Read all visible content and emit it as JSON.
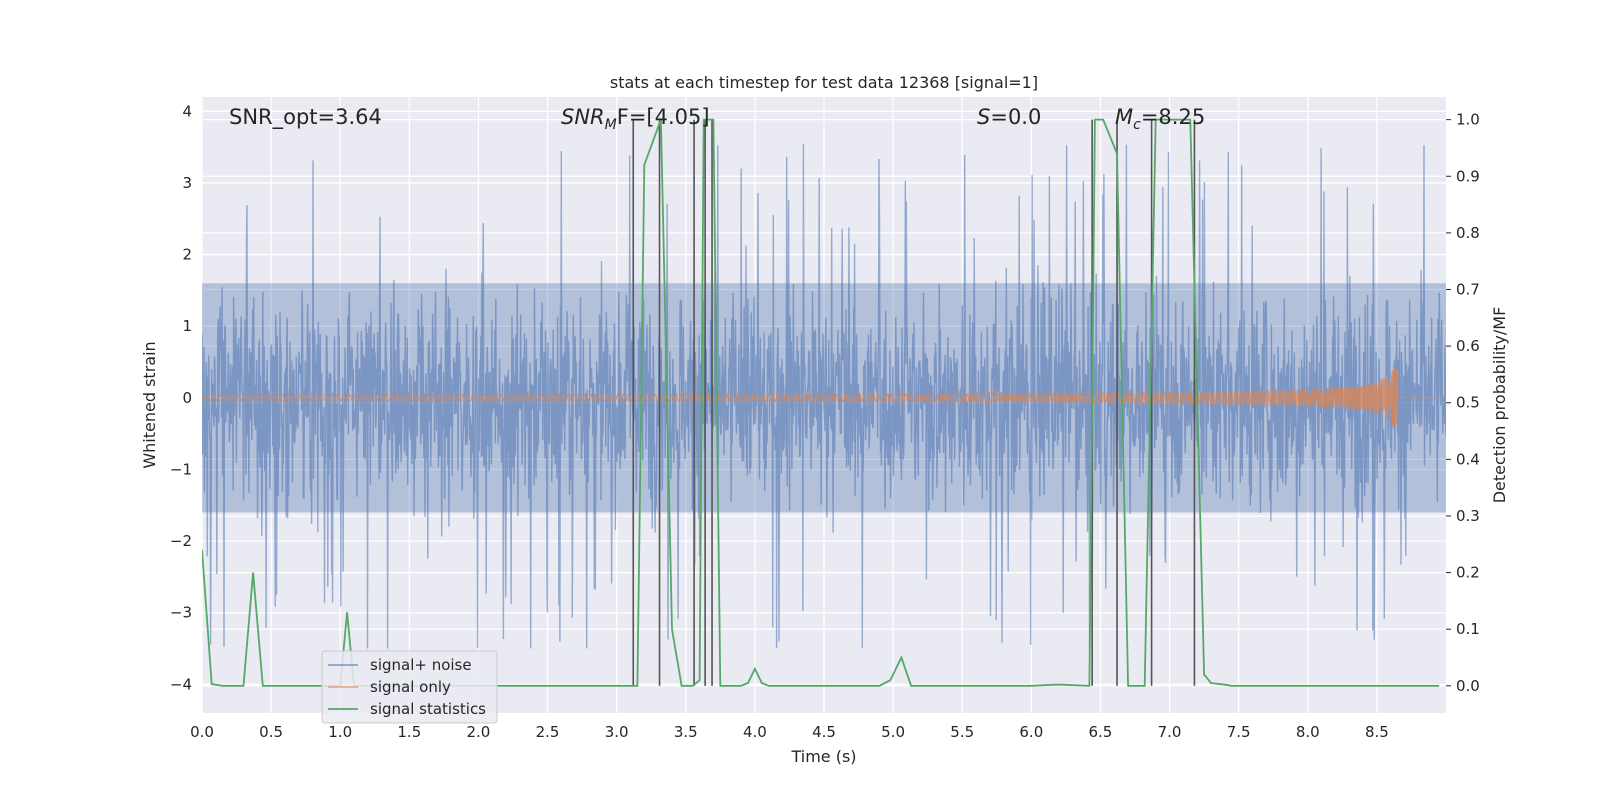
{
  "chart_data": {
    "type": "line",
    "title": "stats at each timestep for test data 12368 [signal=1]",
    "xlabel": "Time (s)",
    "ylabel": "Whitened strain",
    "ylabel_right": "Detection probability/MF",
    "xlim": [
      0.0,
      9.0
    ],
    "ylim": [
      -4.4,
      4.2
    ],
    "ylim_right": [
      -0.048,
      1.04
    ],
    "x_ticks": [
      "0.0",
      "0.5",
      "1.0",
      "1.5",
      "2.0",
      "2.5",
      "3.0",
      "3.5",
      "4.0",
      "4.5",
      "5.0",
      "5.5",
      "6.0",
      "6.5",
      "7.0",
      "7.5",
      "8.0",
      "8.5"
    ],
    "y_ticks": [
      "4",
      "3",
      "2",
      "1",
      "0",
      "−1",
      "−2",
      "−3",
      "−4"
    ],
    "y_ticks_right": [
      "1.0",
      "0.9",
      "0.8",
      "0.7",
      "0.6",
      "0.5",
      "0.4",
      "0.3",
      "0.2",
      "0.1",
      "0.0"
    ],
    "grid": true,
    "annotations": {
      "snr_opt": "SNR_opt=3.64",
      "snr_mf_main": "SNR",
      "snr_mf_sub": "M",
      "snr_mf_rest": "F=[4.05]",
      "s_main": "S",
      "s_rest": "=0.0",
      "mc_main": "M",
      "mc_sub": "c",
      "mc_rest": "=8.25"
    },
    "legend": {
      "location": "lower-left",
      "entries": [
        "signal+ noise",
        "signal only",
        "signal statistics"
      ]
    },
    "colors": {
      "noise": "#4c72b0",
      "signal": "#dd8452",
      "stats": "#55a868",
      "vlines": "#555555",
      "background": "#eaeaf2"
    },
    "series": [
      {
        "name": "signal+ noise",
        "description": "whitened strain, noise dominated, roughly within ±2.5 with spikes to ±3.5",
        "amplitude_core": 1.6,
        "amplitude_peak": 3.6
      },
      {
        "name": "signal only",
        "description": "chirp signal growing toward merger near t=8.65 s",
        "merger_time": 8.65,
        "peak_amplitude": 0.5
      },
      {
        "name": "signal statistics",
        "x": [
          0.0,
          0.07,
          0.15,
          0.3,
          0.37,
          0.44,
          0.6,
          0.9,
          1.0,
          1.05,
          1.1,
          1.2,
          2.5,
          3.05,
          3.15,
          3.2,
          3.32,
          3.4,
          3.47,
          3.55,
          3.6,
          3.63,
          3.7,
          3.75,
          3.9,
          3.95,
          4.0,
          4.05,
          4.1,
          4.2,
          4.9,
          4.98,
          5.06,
          5.13,
          5.3,
          6.0,
          6.17,
          6.22,
          6.42,
          6.46,
          6.52,
          6.62,
          6.7,
          6.82,
          6.9,
          7.0,
          7.05,
          7.15,
          7.25,
          7.3,
          7.4,
          7.45,
          8.0,
          8.95
        ],
        "y": [
          0.24,
          0.003,
          0.0,
          0.0,
          0.2,
          0.0,
          0.0,
          0.0,
          0.0,
          0.13,
          0.0,
          0.0,
          0.0,
          0.0,
          0.0,
          0.92,
          1.0,
          0.1,
          0.0,
          0.0,
          0.01,
          1.0,
          1.0,
          0.0,
          0.0,
          0.005,
          0.03,
          0.005,
          0.0,
          0.0,
          0.0,
          0.01,
          0.05,
          0.0,
          0.0,
          0.0,
          0.002,
          0.002,
          0.0,
          1.0,
          1.0,
          0.94,
          0.0,
          0.0,
          1.0,
          1.0,
          1.0,
          1.0,
          0.02,
          0.005,
          0.002,
          0.0,
          0.0,
          0.0
        ]
      }
    ],
    "vertical_markers": [
      3.12,
      3.31,
      3.56,
      3.64,
      3.69,
      6.44,
      6.62,
      6.87,
      7.18
    ]
  }
}
